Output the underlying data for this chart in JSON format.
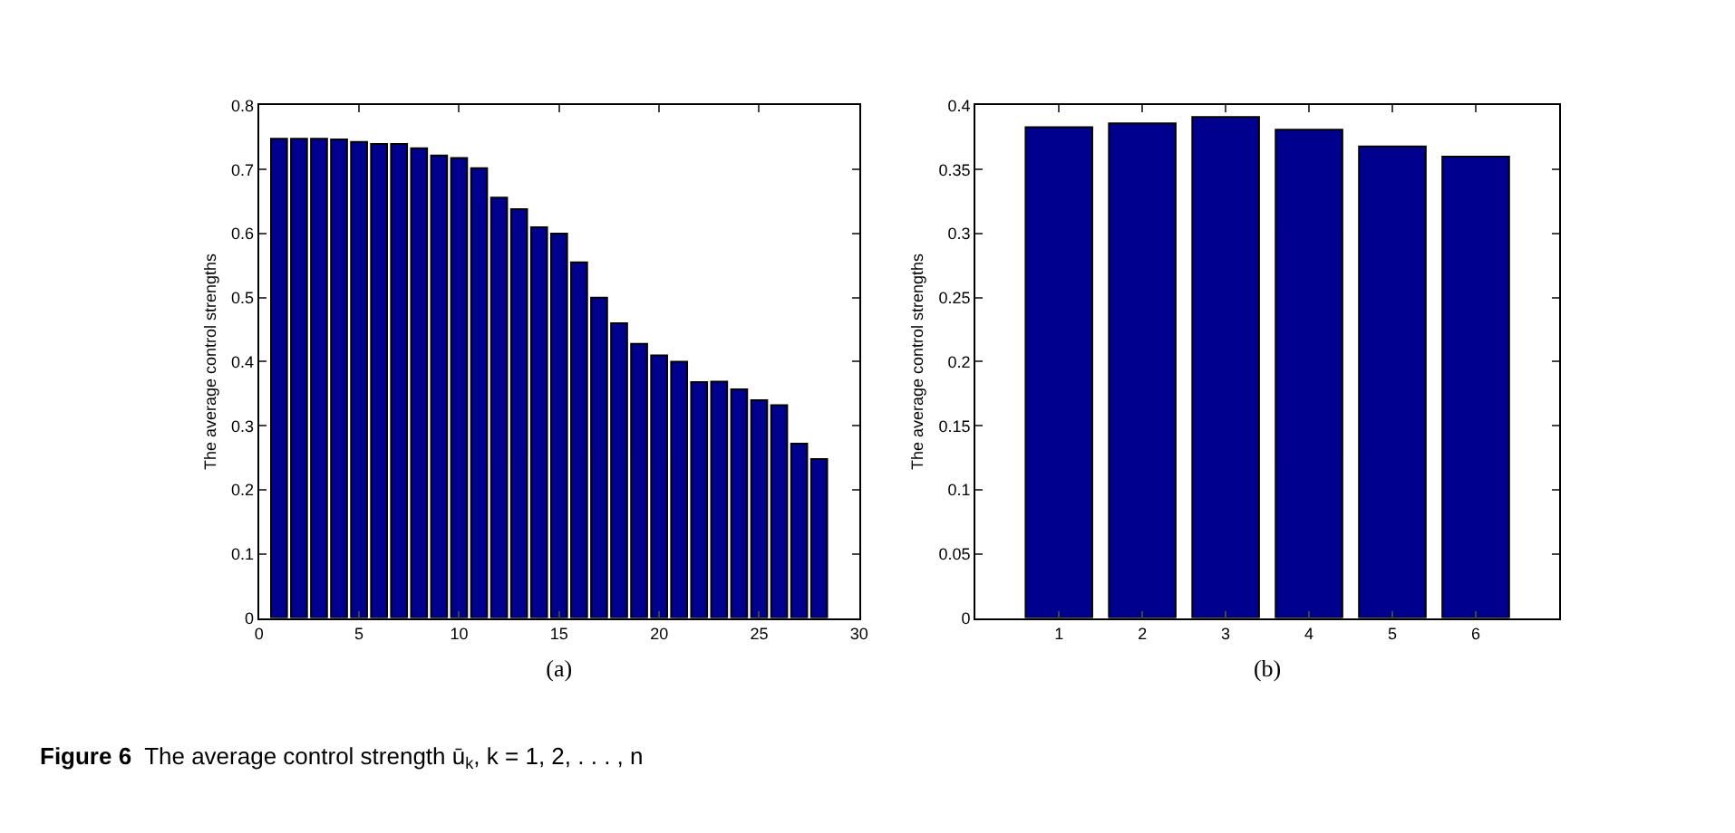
{
  "chart_data": [
    {
      "type": "bar",
      "xlabel": "(a)",
      "ylabel": "The average control strengths",
      "x": [
        1,
        2,
        3,
        4,
        5,
        6,
        7,
        8,
        9,
        10,
        11,
        12,
        13,
        14,
        15,
        16,
        17,
        18,
        19,
        20,
        21,
        22,
        23,
        24,
        25,
        26,
        27,
        28
      ],
      "values": [
        0.748,
        0.748,
        0.748,
        0.747,
        0.743,
        0.74,
        0.74,
        0.733,
        0.722,
        0.718,
        0.702,
        0.656,
        0.638,
        0.61,
        0.6,
        0.555,
        0.5,
        0.46,
        0.428,
        0.41,
        0.4,
        0.368,
        0.369,
        0.357,
        0.34,
        0.332,
        0.272,
        0.248
      ],
      "color": "#00008f",
      "xlim": [
        0,
        30
      ],
      "xticks": [
        0,
        5,
        10,
        15,
        20,
        25,
        30
      ],
      "ylim": [
        0,
        0.8
      ],
      "yticks": [
        0,
        0.1,
        0.2,
        0.3,
        0.4,
        0.5,
        0.6,
        0.7,
        0.8
      ],
      "annotations": [
        "Figure 6  The average control strength ū$_{k}$, k = 1, 2, . . . , n"
      ]
    },
    {
      "type": "bar",
      "xlabel": "(b)",
      "ylabel": "The average control strengths",
      "categories": [
        "1",
        "2",
        "3",
        "4",
        "5",
        "6"
      ],
      "values": [
        0.383,
        0.386,
        0.391,
        0.381,
        0.368,
        0.36
      ],
      "color": "#00008f",
      "ylim": [
        0,
        0.4
      ],
      "yticks": [
        0,
        0.05,
        0.1,
        0.15,
        0.2,
        0.25,
        0.3,
        0.35,
        0.4
      ]
    }
  ]
}
